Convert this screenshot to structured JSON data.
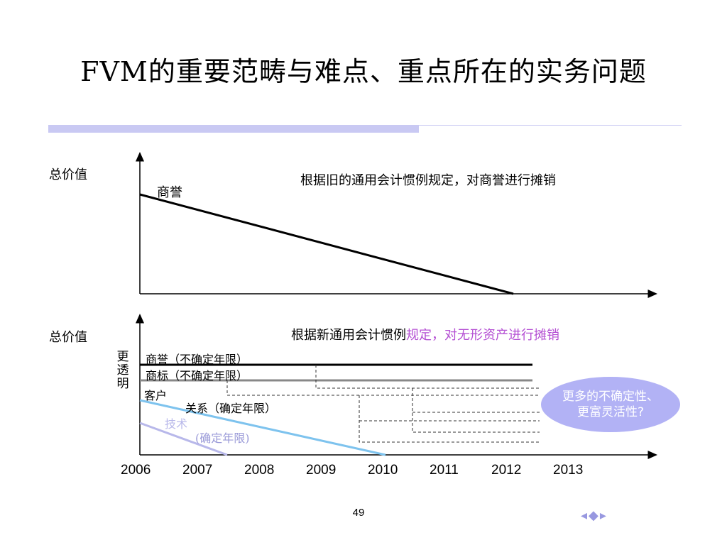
{
  "slide": {
    "title": "FVM的重要范畴与难点、重点所在的实务问题",
    "page_number": "49",
    "nav_icons": "◂◆▸"
  },
  "top_chart": {
    "y_label": "总价值",
    "note": "根据旧的通用会计惯例规定，对商誉进行摊销",
    "goodwill_label": "商誉"
  },
  "bottom_chart": {
    "y_label": "总价值",
    "note_black": "根据新通用会计惯例",
    "note_purple": "规定，对无形资产进行摊销",
    "side_label": [
      "更",
      "透",
      "明"
    ],
    "lines": {
      "goodwill": "商誉（不确定年限）",
      "trademark": "商标（不确定年限）",
      "customer": "客户",
      "relation": "关系（确定年限）",
      "technology": "技术",
      "technology_period": "(确定年限)"
    },
    "bubble": [
      "更多的不确定性、",
      "更富灵活性?"
    ],
    "years": [
      "2006",
      "2007",
      "2008",
      "2009",
      "2010",
      "2011",
      "2012",
      "2013"
    ]
  },
  "colors": {
    "accent_bar": "#c9c9f3",
    "goodwill_line": "#000000",
    "trademark_line": "#888888",
    "customer_line": "#7ec3ee",
    "technology_line": "#b8b8ea",
    "purple_text": "#b44fd3",
    "bubble": "#b2b2f5"
  }
}
